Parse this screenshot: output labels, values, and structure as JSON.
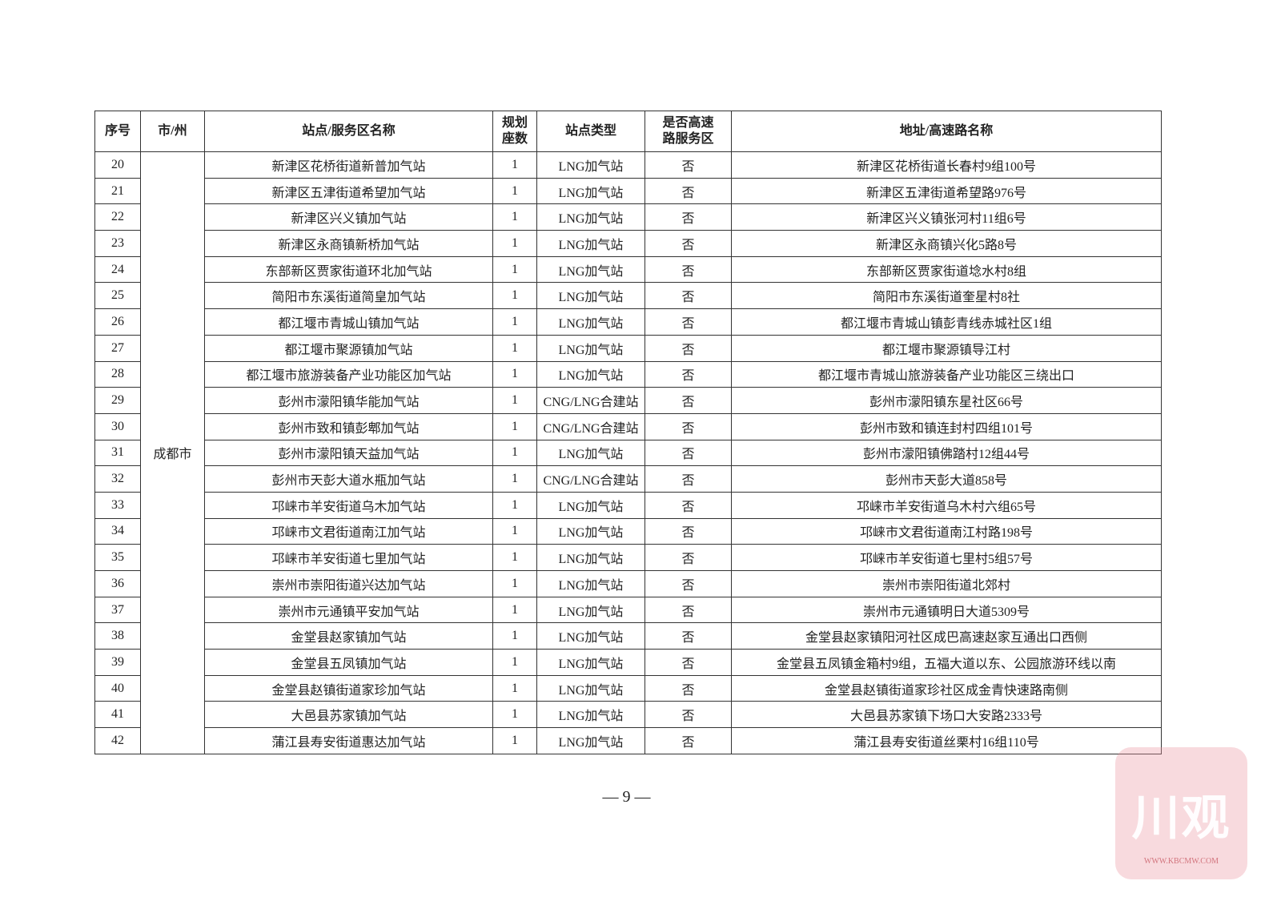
{
  "table": {
    "header": [
      "序号",
      "市/州",
      "站点/服务区名称",
      "规划座数",
      "站点类型",
      "是否高速路服务区",
      "地址/高速路名称"
    ],
    "city": "成都市",
    "rows": [
      [
        20,
        "新津区花桥街道新普加气站",
        1,
        "LNG加气站",
        "否",
        "新津区花桥街道长春村9组100号"
      ],
      [
        21,
        "新津区五津街道希望加气站",
        1,
        "LNG加气站",
        "否",
        "新津区五津街道希望路976号"
      ],
      [
        22,
        "新津区兴义镇加气站",
        1,
        "LNG加气站",
        "否",
        "新津区兴义镇张河村11组6号"
      ],
      [
        23,
        "新津区永商镇新桥加气站",
        1,
        "LNG加气站",
        "否",
        "新津区永商镇兴化5路8号"
      ],
      [
        24,
        "东部新区贾家街道环北加气站",
        1,
        "LNG加气站",
        "否",
        "东部新区贾家街道埝水村8组"
      ],
      [
        25,
        "简阳市东溪街道简皇加气站",
        1,
        "LNG加气站",
        "否",
        "简阳市东溪街道奎星村8社"
      ],
      [
        26,
        "都江堰市青城山镇加气站",
        1,
        "LNG加气站",
        "否",
        "都江堰市青城山镇彭青线赤城社区1组"
      ],
      [
        27,
        "都江堰市聚源镇加气站",
        1,
        "LNG加气站",
        "否",
        "都江堰市聚源镇导江村"
      ],
      [
        28,
        "都江堰市旅游装备产业功能区加气站",
        1,
        "LNG加气站",
        "否",
        "都江堰市青城山旅游装备产业功能区三绕出口"
      ],
      [
        29,
        "彭州市濛阳镇华能加气站",
        1,
        "CNG/LNG合建站",
        "否",
        "彭州市濛阳镇东星社区66号"
      ],
      [
        30,
        "彭州市致和镇彭郫加气站",
        1,
        "CNG/LNG合建站",
        "否",
        "彭州市致和镇连封村四组101号"
      ],
      [
        31,
        "彭州市濛阳镇天益加气站",
        1,
        "LNG加气站",
        "否",
        "彭州市濛阳镇佛踏村12组44号"
      ],
      [
        32,
        "彭州市天彭大道水瓶加气站",
        1,
        "CNG/LNG合建站",
        "否",
        "彭州市天彭大道858号"
      ],
      [
        33,
        "邛崃市羊安街道乌木加气站",
        1,
        "LNG加气站",
        "否",
        "邛崃市羊安街道乌木村六组65号"
      ],
      [
        34,
        "邛崃市文君街道南江加气站",
        1,
        "LNG加气站",
        "否",
        "邛崃市文君街道南江村路198号"
      ],
      [
        35,
        "邛崃市羊安街道七里加气站",
        1,
        "LNG加气站",
        "否",
        "邛崃市羊安街道七里村5组57号"
      ],
      [
        36,
        "崇州市崇阳街道兴达加气站",
        1,
        "LNG加气站",
        "否",
        "崇州市崇阳街道北郊村"
      ],
      [
        37,
        "崇州市元通镇平安加气站",
        1,
        "LNG加气站",
        "否",
        "崇州市元通镇明日大道5309号"
      ],
      [
        38,
        "金堂县赵家镇加气站",
        1,
        "LNG加气站",
        "否",
        "金堂县赵家镇阳河社区成巴高速赵家互通出口西侧"
      ],
      [
        39,
        "金堂县五凤镇加气站",
        1,
        "LNG加气站",
        "否",
        "金堂县五凤镇金箱村9组，五福大道以东、公园旅游环线以南"
      ],
      [
        40,
        "金堂县赵镇街道家珍加气站",
        1,
        "LNG加气站",
        "否",
        "金堂县赵镇街道家珍社区成金青快速路南侧"
      ],
      [
        41,
        "大邑县苏家镇加气站",
        1,
        "LNG加气站",
        "否",
        "大邑县苏家镇下场口大安路2333号"
      ],
      [
        42,
        "蒲江县寿安街道惠达加气站",
        1,
        "LNG加气站",
        "否",
        "蒲江县寿安街道丝栗村16组110号"
      ]
    ]
  },
  "page_number": "— 9 —",
  "watermark": {
    "logo": "川观",
    "site": "WWW.KBCMW.COM"
  }
}
